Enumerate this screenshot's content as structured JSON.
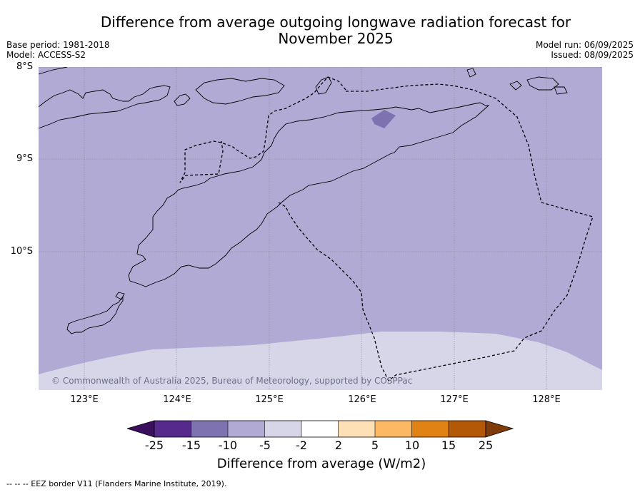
{
  "title": "Difference from average outgoing longwave radiation forecast for November 2025",
  "meta": {
    "base_period": "Base period: 1981-2018",
    "model": "Model: ACCESS-S2",
    "model_run": "Model run: 06/09/2025",
    "issued": "Issued: 08/09/2025"
  },
  "map": {
    "lat_labels": [
      "8°S",
      "9°S",
      "10°S"
    ],
    "lon_labels": [
      "123°E",
      "124°E",
      "125°E",
      "126°E",
      "127°E",
      "128°E"
    ],
    "copyright": "© Commonwealth of Australia 2025, Bureau of Meteorology, supported by COSPPac",
    "lon_range": [
      122.5,
      128.6
    ],
    "lat_range": [
      -11.5,
      -8.0
    ],
    "fill_colors": {
      "bin_-10_-5": "#b1aad4",
      "bin_-5_-2": "#d6d6e8",
      "bin_-15_-10": "#7f72b1"
    }
  },
  "colorbar": {
    "title": "Difference from average (W/m2)",
    "ticks": [
      "-25",
      "-15",
      "-10",
      "-5",
      "-2",
      "2",
      "5",
      "10",
      "15",
      "25"
    ],
    "colors": [
      "#3b0f5e",
      "#552a8c",
      "#7f72b1",
      "#b1aad4",
      "#d6d6e8",
      "#ffffff",
      "#fee0b6",
      "#fdb863",
      "#e08214",
      "#b35806",
      "#7f3b08"
    ]
  },
  "footnote": "--  --  -- EEZ border V11 (Flanders Marine Institute, 2019)."
}
